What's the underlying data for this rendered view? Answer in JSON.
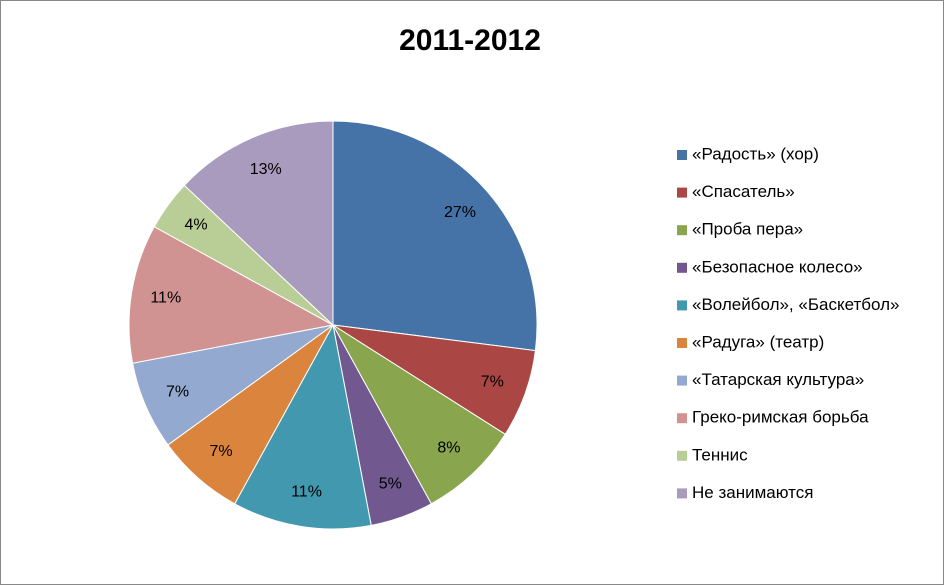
{
  "chart_data": {
    "type": "pie",
    "title": "2011-2012",
    "categories": [
      "«Радость» (хор)",
      "«Спасатель»",
      "«Проба пера»",
      "«Безопасное колесо»",
      "«Волейбол», «Баскетбол»",
      "«Радуга» (театр)",
      "«Татарская культура»",
      "Греко-римская борьба",
      "Теннис",
      "Не занимаются"
    ],
    "values": [
      27,
      7,
      8,
      5,
      11,
      7,
      7,
      11,
      4,
      13
    ],
    "value_labels": [
      "27%",
      "7%",
      "8%",
      "5%",
      "11%",
      "7%",
      "7%",
      "11%",
      "4%",
      "13%"
    ],
    "colors": [
      "#4572A7",
      "#AA4643",
      "#89A54E",
      "#71588F",
      "#4198AF",
      "#DB843D",
      "#93A9CF",
      "#D19392",
      "#B9CD96",
      "#A99BBD"
    ],
    "legend": "right"
  }
}
